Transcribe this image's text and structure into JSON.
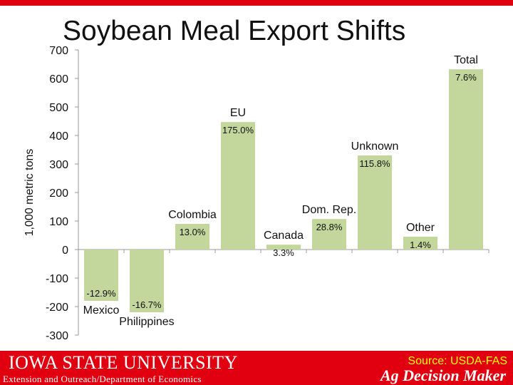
{
  "slide": {
    "title": "Soybean Meal Export Shifts",
    "colors": {
      "bar": "#c3d69b",
      "footer": "#e0000f",
      "source_text": "#ffff00"
    }
  },
  "footer": {
    "university": "IOWA STATE UNIVERSITY",
    "department": "Extension and Outreach/Department of Economics",
    "source": "Source: USDA-FAS",
    "brand": "Ag Decision Maker"
  },
  "chart_data": {
    "type": "bar",
    "title": "",
    "ylabel": "1,000 metric tons",
    "xlabel": "",
    "ylim": [
      -300,
      700
    ],
    "yticks": [
      "700",
      "600",
      "500",
      "400",
      "300",
      "200",
      "100",
      "0",
      "-100",
      "-200",
      "-300"
    ],
    "grid": false,
    "categories": [
      "Mexico",
      "Philippines",
      "Colombia",
      "EU",
      "Canada",
      "Dom. Rep.",
      "Unknown",
      "Other",
      "Total"
    ],
    "values": [
      -180,
      -220,
      90,
      447,
      17,
      107,
      330,
      45,
      632
    ],
    "data_labels": [
      "-12.9%",
      "-16.7%",
      "13.0%",
      "175.0%",
      "3.3%",
      "28.8%",
      "115.8%",
      "1.4%",
      "7.6%"
    ]
  }
}
